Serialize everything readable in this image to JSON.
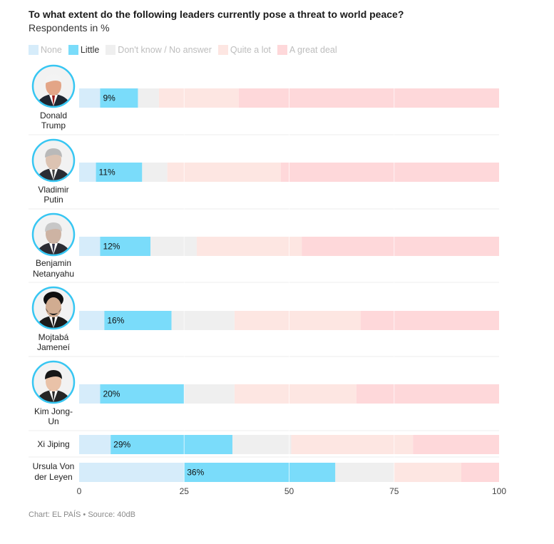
{
  "header": {
    "title": "To what extent do the following leaders currently pose a threat to world peace?",
    "subtitle": "Respondents in %"
  },
  "footer": {
    "text": "Chart: EL PAÍS • Source: 40dB"
  },
  "chart_data": {
    "type": "bar",
    "orientation": "horizontal",
    "stacked": true,
    "title": "To what extent do the following leaders currently pose a threat to world peace?",
    "subtitle": "Respondents in %",
    "xlim": [
      0,
      100
    ],
    "xticks": [
      0,
      25,
      50,
      75,
      100
    ],
    "legend_position": "top-left",
    "grid": true,
    "categories": [
      {
        "label": "Donald Trump",
        "lines": [
          "Donald",
          "Trump"
        ],
        "photo": true,
        "avatar_icon": "portrait-trump-icon",
        "skin": "#e3a587",
        "hair": "#f3f3f3",
        "suit": "#1f2630",
        "tie": "#9c1b1b"
      },
      {
        "label": "Vladimir Putin",
        "lines": [
          "Vladimir",
          "Putin"
        ],
        "photo": true,
        "avatar_icon": "portrait-putin-icon",
        "skin": "#dcc3b2",
        "hair": "#b9b9b9",
        "suit": "#2a2c33",
        "tie": "#444"
      },
      {
        "label": "Benjamin Netanyahu",
        "lines": [
          "Benjamin",
          "Netanyahu"
        ],
        "photo": true,
        "avatar_icon": "portrait-netanyahu-icon",
        "skin": "#cdb3a3",
        "hair": "#c7c7c7",
        "suit": "#2c2c33",
        "tie": "#36364a"
      },
      {
        "label": "Mojtabá Jameneí",
        "lines": [
          "Mojtabá",
          "Jameneí"
        ],
        "photo": true,
        "avatar_icon": "portrait-jamenei-icon",
        "skin": "#d1ac91",
        "hair": "#111111",
        "suit": "#1c1c1c",
        "tie": "#1c1c1c",
        "turban": true,
        "beard": true
      },
      {
        "label": "Kim Jong-Un",
        "lines": [
          "Kim Jong-",
          "Un"
        ],
        "photo": true,
        "avatar_icon": "portrait-kim-icon",
        "skin": "#e9c2a8",
        "hair": "#161616",
        "suit": "#262626",
        "tie": "#2b2b2b"
      },
      {
        "label": "Xi Jiping",
        "lines": [
          "Xi Jiping"
        ],
        "photo": false
      },
      {
        "label": "Ursula Von der Leyen",
        "lines": [
          "Ursula Von",
          "der Leyen"
        ],
        "photo": false
      }
    ],
    "series": [
      {
        "name": "None",
        "color": "#d6ecfa",
        "values": [
          5,
          4,
          5,
          6,
          5,
          7.5,
          25
        ]
      },
      {
        "name": "Little",
        "color": "#7adcfa",
        "values": [
          9,
          11,
          12,
          16,
          20,
          29,
          36
        ]
      },
      {
        "name": "Don't know / No answer",
        "color": "#efefef",
        "values": [
          5,
          6,
          11,
          15,
          12,
          14,
          14
        ]
      },
      {
        "name": "Quite a lot",
        "color": "#fde6e2",
        "values": [
          19,
          27,
          25,
          30,
          29,
          29,
          16
        ]
      },
      {
        "name": "A great deal",
        "color": "#fed8da",
        "values": [
          62,
          52,
          47,
          33,
          34,
          20.5,
          9
        ]
      }
    ],
    "data_labels": [
      "9%",
      "11%",
      "12%",
      "16%",
      "20%",
      "29%",
      "36%"
    ],
    "data_label_series": "Little"
  }
}
